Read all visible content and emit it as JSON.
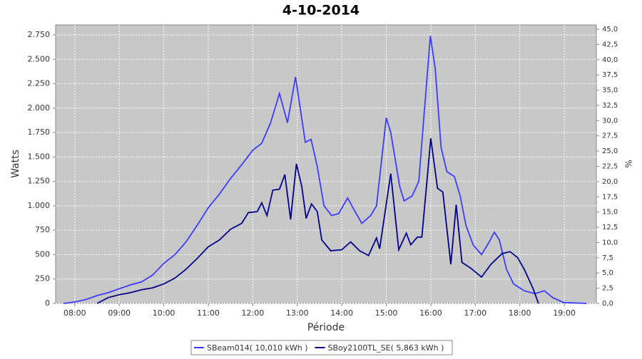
{
  "chart_data": {
    "type": "line",
    "title": "4-10-2014",
    "x_label": "Période",
    "y_label": "Watts",
    "y2_label": "%",
    "xlim": [
      7.57,
      19.72
    ],
    "xticks": [
      {
        "value": 8,
        "label": "08:00"
      },
      {
        "value": 9,
        "label": "09:00"
      },
      {
        "value": 10,
        "label": "10:00"
      },
      {
        "value": 11,
        "label": "11:00"
      },
      {
        "value": 12,
        "label": "12:00"
      },
      {
        "value": 13,
        "label": "13:00"
      },
      {
        "value": 14,
        "label": "14:00"
      },
      {
        "value": 15,
        "label": "15:00"
      },
      {
        "value": 16,
        "label": "16:00"
      },
      {
        "value": 17,
        "label": "17:00"
      },
      {
        "value": 18,
        "label": "18:00"
      },
      {
        "value": 19,
        "label": "19:00"
      }
    ],
    "ylim": [
      0,
      2852
    ],
    "yticks": [
      0,
      250,
      500,
      750,
      {
        "value": 1000,
        "label": "1.000"
      },
      {
        "value": 1250,
        "label": "1.250"
      },
      {
        "value": 1500,
        "label": "1.500"
      },
      {
        "value": 1750,
        "label": "1.750"
      },
      {
        "value": 2000,
        "label": "2.000"
      },
      {
        "value": 2250,
        "label": "2.250"
      },
      {
        "value": 2500,
        "label": "2.500"
      },
      {
        "value": 2750,
        "label": "2.750"
      }
    ],
    "y2lim": [
      0,
      45.7
    ],
    "y2ticks": [
      {
        "value": 0,
        "label": "0,0"
      },
      {
        "value": 2.5,
        "label": "2,5"
      },
      {
        "value": 5,
        "label": "5,0"
      },
      {
        "value": 7.5,
        "label": "7,5"
      },
      {
        "value": 10,
        "label": "10,0"
      },
      {
        "value": 12.5,
        "label": "12,5"
      },
      {
        "value": 15,
        "label": "15,0"
      },
      {
        "value": 17.5,
        "label": "17,5"
      },
      {
        "value": 20,
        "label": "20,0"
      },
      {
        "value": 22.5,
        "label": "22,5"
      },
      {
        "value": 25,
        "label": "25,0"
      },
      {
        "value": 27.5,
        "label": "27,5"
      },
      {
        "value": 30,
        "label": "30,0"
      },
      {
        "value": 32.5,
        "label": "32,5"
      },
      {
        "value": 35,
        "label": "35,0"
      },
      {
        "value": 37.5,
        "label": "37,5"
      },
      {
        "value": 40,
        "label": "40,0"
      },
      {
        "value": 42.5,
        "label": "42,5"
      },
      {
        "value": 45,
        "label": "45,0"
      }
    ],
    "grid": true,
    "legend": "bottom",
    "series": [
      {
        "name": "SBeam014( 10,010 kWh )",
        "color": "#3c3cff",
        "x": [
          7.75,
          8.0,
          8.25,
          8.5,
          8.75,
          9.0,
          9.25,
          9.5,
          9.75,
          10.0,
          10.25,
          10.5,
          10.75,
          11.0,
          11.25,
          11.5,
          11.75,
          12.0,
          12.2,
          12.4,
          12.6,
          12.78,
          12.96,
          13.18,
          13.31,
          13.45,
          13.6,
          13.77,
          13.93,
          14.13,
          14.25,
          14.45,
          14.65,
          14.78,
          15.0,
          15.1,
          15.3,
          15.4,
          15.58,
          15.73,
          15.86,
          15.99,
          16.1,
          16.23,
          16.36,
          16.53,
          16.66,
          16.79,
          16.95,
          17.14,
          17.3,
          17.43,
          17.54,
          17.7,
          17.86,
          18.1,
          18.34,
          18.55,
          18.74,
          18.98,
          19.5
        ],
        "values": [
          0,
          15,
          40,
          80,
          110,
          150,
          190,
          220,
          290,
          410,
          500,
          630,
          800,
          980,
          1120,
          1280,
          1420,
          1570,
          1640,
          1850,
          2150,
          1850,
          2320,
          1650,
          1680,
          1400,
          1000,
          900,
          920,
          1080,
          980,
          820,
          900,
          1000,
          1900,
          1750,
          1200,
          1050,
          1100,
          1250,
          2000,
          2740,
          2400,
          1600,
          1350,
          1300,
          1100,
          800,
          600,
          500,
          620,
          730,
          650,
          350,
          200,
          130,
          100,
          130,
          60,
          10,
          0
        ]
      },
      {
        "name": "SBoy2100TL_SE( 5,863 kWh )",
        "color": "#00008b",
        "x": [
          8.5,
          8.75,
          9.0,
          9.25,
          9.5,
          9.75,
          10.0,
          10.25,
          10.5,
          10.75,
          11.0,
          11.25,
          11.5,
          11.75,
          11.9,
          12.1,
          12.2,
          12.32,
          12.45,
          12.6,
          12.72,
          12.85,
          12.98,
          13.1,
          13.2,
          13.32,
          13.45,
          13.55,
          13.75,
          14.0,
          14.2,
          14.4,
          14.6,
          14.78,
          14.85,
          15.1,
          15.28,
          15.45,
          15.55,
          15.7,
          15.8,
          16.0,
          16.15,
          16.27,
          16.45,
          16.57,
          16.7,
          16.9,
          17.14,
          17.35,
          17.6,
          17.78,
          17.95,
          18.1,
          18.3,
          18.42
        ],
        "values": [
          0,
          60,
          90,
          110,
          140,
          160,
          200,
          260,
          350,
          460,
          580,
          650,
          760,
          820,
          930,
          940,
          1030,
          900,
          1160,
          1170,
          1320,
          860,
          1430,
          1200,
          870,
          1020,
          940,
          650,
          540,
          550,
          630,
          540,
          490,
          670,
          560,
          1330,
          550,
          720,
          600,
          680,
          680,
          1690,
          1180,
          1140,
          400,
          1010,
          420,
          360,
          270,
          400,
          510,
          530,
          470,
          350,
          150,
          0
        ]
      }
    ]
  }
}
